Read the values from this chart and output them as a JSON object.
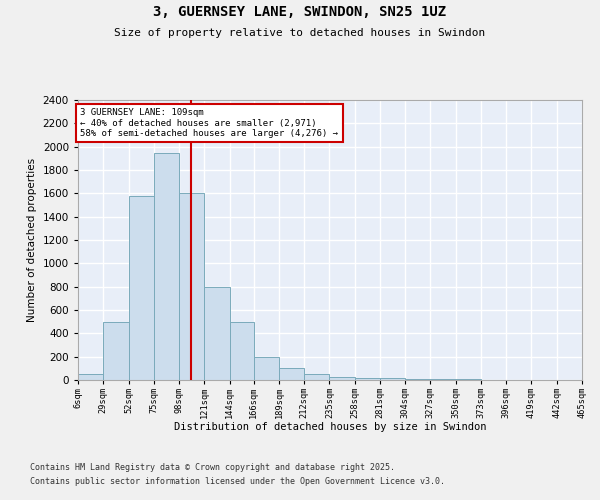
{
  "title": "3, GUERNSEY LANE, SWINDON, SN25 1UZ",
  "subtitle": "Size of property relative to detached houses in Swindon",
  "xlabel": "Distribution of detached houses by size in Swindon",
  "ylabel": "Number of detached properties",
  "bar_color": "#ccdded",
  "bar_edge_color": "#7aaabb",
  "background_color": "#e8eef8",
  "grid_color": "#ffffff",
  "fig_color": "#f0f0f0",
  "bin_edges": [
    6,
    29,
    52,
    75,
    98,
    121,
    144,
    166,
    189,
    212,
    235,
    258,
    281,
    304,
    327,
    350,
    373,
    396,
    419,
    442,
    465
  ],
  "bar_heights": [
    50,
    500,
    1580,
    1950,
    1600,
    800,
    500,
    200,
    100,
    50,
    30,
    20,
    15,
    10,
    8,
    5,
    3,
    2,
    1,
    1
  ],
  "property_size": 109,
  "annotation_line1": "3 GUERNSEY LANE: 109sqm",
  "annotation_line2": "← 40% of detached houses are smaller (2,971)",
  "annotation_line3": "58% of semi-detached houses are larger (4,276) →",
  "annotation_box_color": "#ffffff",
  "annotation_border_color": "#cc0000",
  "property_line_color": "#cc0000",
  "ylim": [
    0,
    2400
  ],
  "yticks": [
    0,
    200,
    400,
    600,
    800,
    1000,
    1200,
    1400,
    1600,
    1800,
    2000,
    2200,
    2400
  ],
  "footer_line1": "Contains HM Land Registry data © Crown copyright and database right 2025.",
  "footer_line2": "Contains public sector information licensed under the Open Government Licence v3.0."
}
